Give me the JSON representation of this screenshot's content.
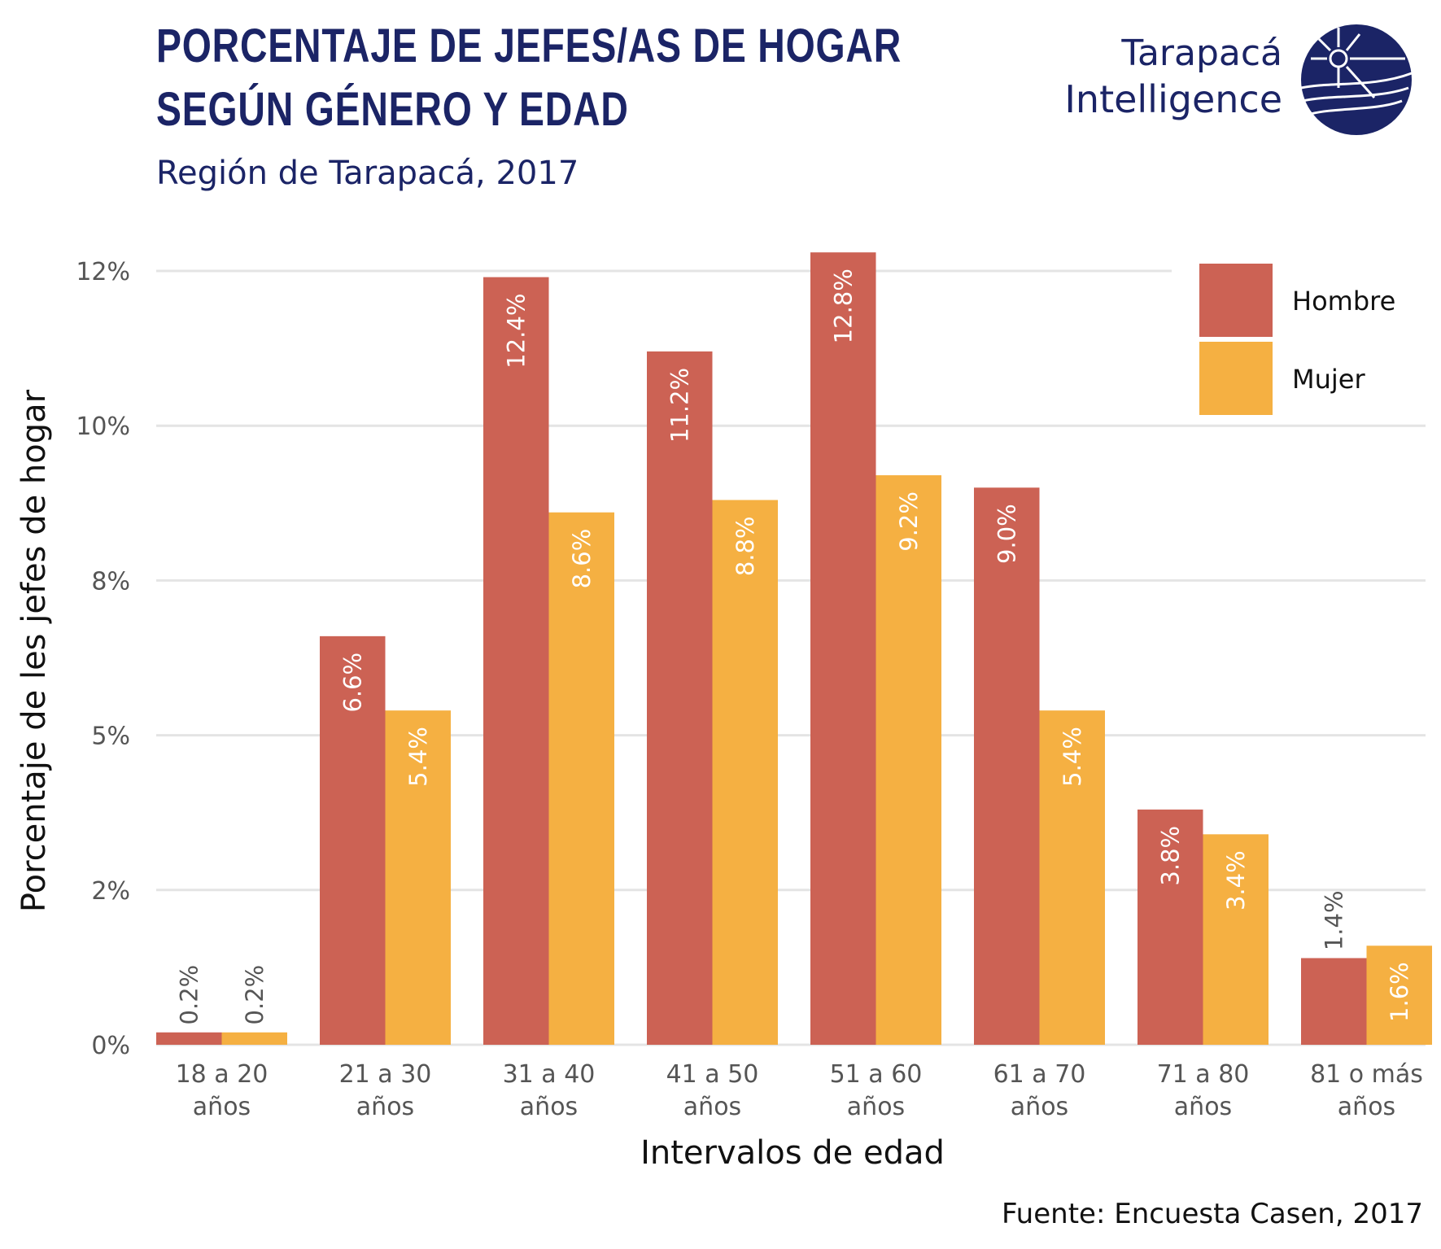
{
  "header": {
    "title_line1": "PORCENTAJE DE JEFES/AS DE HOGAR",
    "title_line2": "SEGÚN GÉNERO Y EDAD",
    "subtitle": "Región de Tarapacá, 2017"
  },
  "logo": {
    "line1": "Tarapacá",
    "line2": "Intelligence",
    "icon": "globe-sun-icon",
    "color": "#1b2466"
  },
  "caption": "Fuente: Encuesta Casen, 2017",
  "chart_data": {
    "type": "bar",
    "categories": [
      [
        "18 a 20",
        "años"
      ],
      [
        "21 a 30",
        "años"
      ],
      [
        "31 a 40",
        "años"
      ],
      [
        "41 a 50",
        "años"
      ],
      [
        "51 a 60",
        "años"
      ],
      [
        "61 a 70",
        "años"
      ],
      [
        "71 a 80",
        "años"
      ],
      [
        "81 o más",
        "años"
      ]
    ],
    "series": [
      {
        "name": "Hombre",
        "color": "#cc6254",
        "values": [
          0.2,
          6.6,
          12.4,
          11.2,
          12.8,
          9.0,
          3.8,
          1.4
        ],
        "labels": [
          "0.2%",
          "6.6%",
          "12.4%",
          "11.2%",
          "12.8%",
          "9.0%",
          "3.8%",
          "1.4%"
        ]
      },
      {
        "name": "Mujer",
        "color": "#f5b042",
        "values": [
          0.2,
          5.4,
          8.6,
          8.8,
          9.2,
          5.4,
          3.4,
          1.6
        ],
        "labels": [
          "0.2%",
          "5.4%",
          "8.6%",
          "8.8%",
          "9.2%",
          "5.4%",
          "3.4%",
          "1.6%"
        ]
      }
    ],
    "yticks": [
      0,
      2.5,
      5,
      7.5,
      10,
      12.5
    ],
    "ytick_labels": [
      "0%",
      "2%",
      "5%",
      "8%",
      "10%",
      "12%"
    ],
    "ylim": [
      0,
      12.8
    ],
    "xlabel": "Intervalos de edad",
    "ylabel": "Porcentaje de les jefes de hogar",
    "grid": true,
    "legend_position": "top-right"
  }
}
